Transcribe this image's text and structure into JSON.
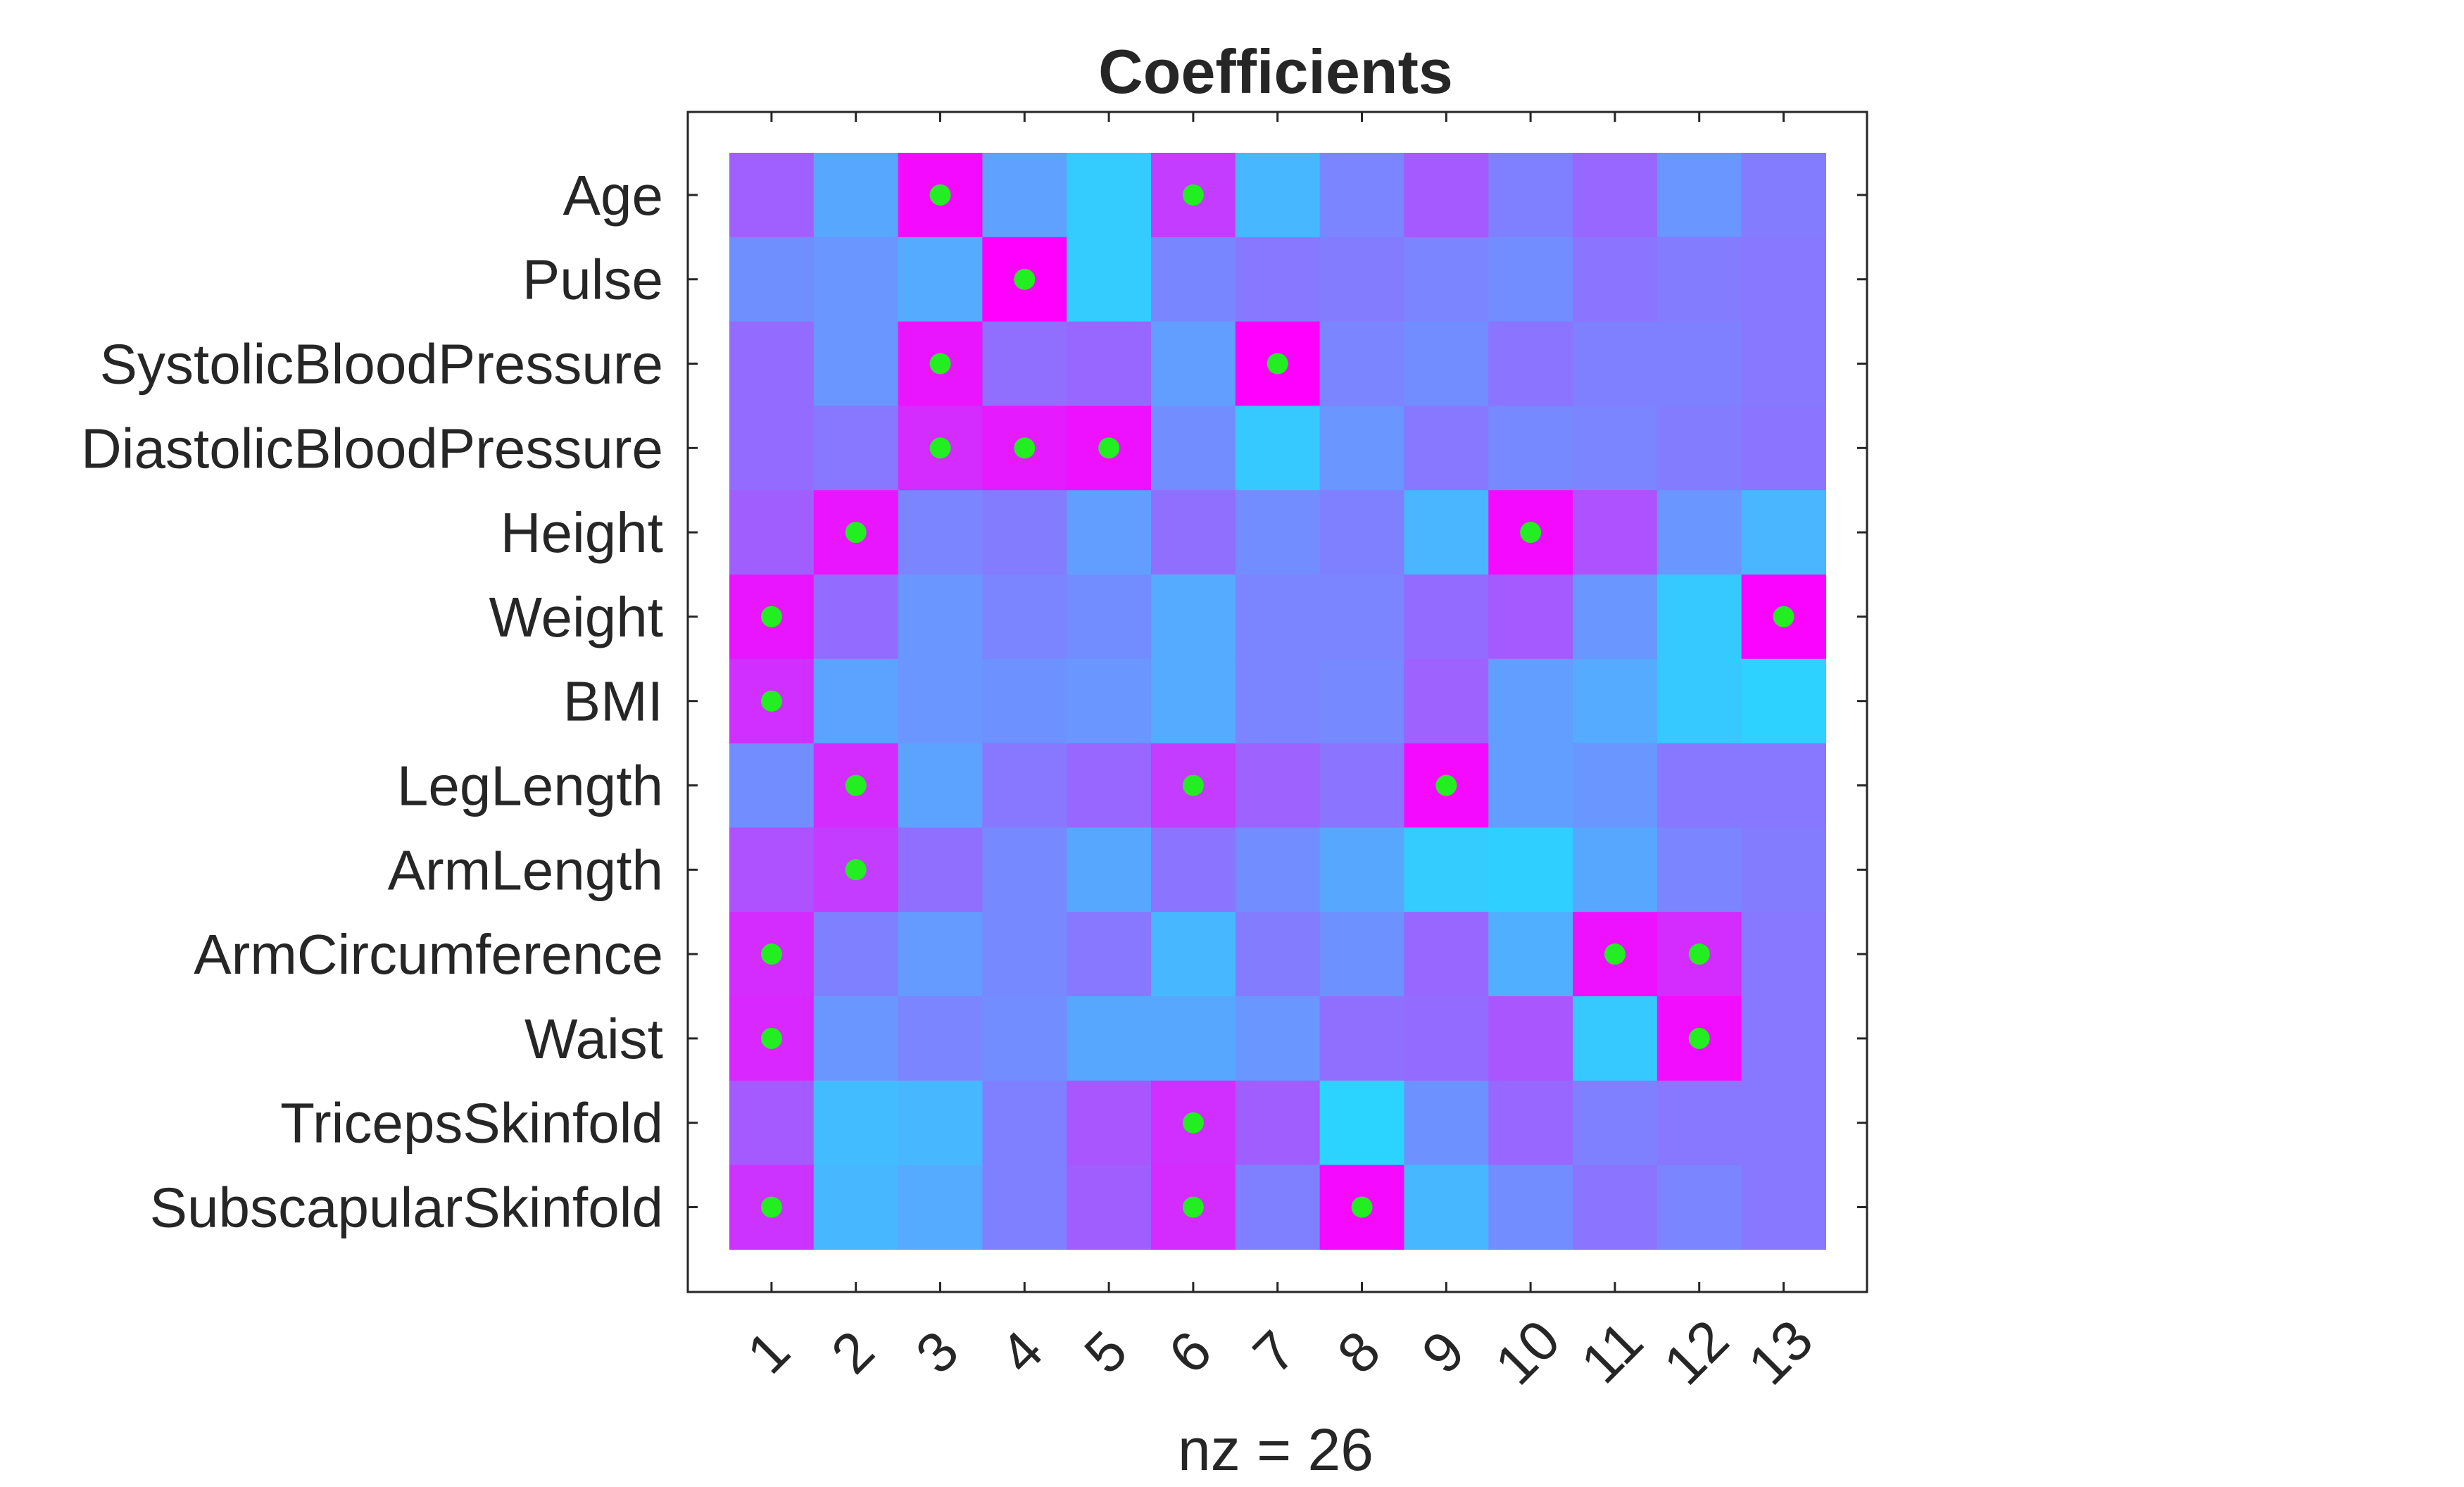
{
  "chart_data": {
    "type": "heatmap",
    "title": "Coefficients",
    "xlabel": "nz = 26",
    "ylabel": "",
    "rows": [
      "Age",
      "Pulse",
      "SystolicBloodPressure",
      "DiastolicBloodPressure",
      "Height",
      "Weight",
      "BMI",
      "LegLength",
      "ArmLength",
      "ArmCircumference",
      "Waist",
      "TricepsSkinfold",
      "SubscapularSkinfold"
    ],
    "columns": [
      "1",
      "2",
      "3",
      "4",
      "5",
      "6",
      "7",
      "8",
      "9",
      "10",
      "11",
      "12",
      "13"
    ],
    "xlim": [
      0.5,
      13.5
    ],
    "ylim": [
      0.5,
      13.5
    ],
    "colormap": {
      "low": "#29d6ff",
      "high": "#ff00ff"
    },
    "marker_color": "#22ee22",
    "values": [
      [
        0.55,
        0.22,
        0.95,
        0.25,
        0.05,
        0.72,
        0.14,
        0.38,
        0.58,
        0.4,
        0.52,
        0.3,
        0.42
      ],
      [
        0.33,
        0.3,
        0.2,
        1.0,
        0.05,
        0.37,
        0.44,
        0.42,
        0.38,
        0.34,
        0.46,
        0.42,
        0.44
      ],
      [
        0.5,
        0.3,
        0.9,
        0.48,
        0.52,
        0.26,
        1.0,
        0.38,
        0.34,
        0.46,
        0.4,
        0.4,
        0.44
      ],
      [
        0.5,
        0.44,
        0.8,
        0.88,
        0.92,
        0.34,
        0.06,
        0.3,
        0.44,
        0.36,
        0.38,
        0.42,
        0.46
      ],
      [
        0.56,
        0.9,
        0.38,
        0.42,
        0.26,
        0.48,
        0.34,
        0.4,
        0.15,
        0.95,
        0.62,
        0.3,
        0.15
      ],
      [
        0.9,
        0.5,
        0.3,
        0.38,
        0.34,
        0.2,
        0.38,
        0.38,
        0.5,
        0.58,
        0.3,
        0.06,
        0.98
      ],
      [
        0.78,
        0.24,
        0.3,
        0.32,
        0.3,
        0.2,
        0.38,
        0.36,
        0.54,
        0.26,
        0.2,
        0.06,
        0.02
      ],
      [
        0.34,
        0.8,
        0.24,
        0.44,
        0.52,
        0.72,
        0.54,
        0.46,
        0.95,
        0.26,
        0.3,
        0.44,
        0.44
      ],
      [
        0.62,
        0.72,
        0.48,
        0.36,
        0.22,
        0.46,
        0.34,
        0.22,
        0.05,
        0.03,
        0.22,
        0.38,
        0.42
      ],
      [
        0.8,
        0.4,
        0.28,
        0.36,
        0.44,
        0.14,
        0.42,
        0.32,
        0.52,
        0.18,
        0.92,
        0.8,
        0.44
      ],
      [
        0.82,
        0.3,
        0.38,
        0.34,
        0.22,
        0.22,
        0.3,
        0.48,
        0.5,
        0.6,
        0.06,
        0.94,
        0.44
      ],
      [
        0.58,
        0.12,
        0.14,
        0.4,
        0.6,
        0.78,
        0.56,
        0.01,
        0.32,
        0.52,
        0.4,
        0.44,
        0.44
      ],
      [
        0.76,
        0.14,
        0.2,
        0.4,
        0.56,
        0.8,
        0.4,
        0.96,
        0.14,
        0.34,
        0.46,
        0.38,
        0.44
      ]
    ],
    "markers": [
      [
        1,
        3
      ],
      [
        1,
        6
      ],
      [
        2,
        4
      ],
      [
        3,
        3
      ],
      [
        3,
        7
      ],
      [
        4,
        3
      ],
      [
        4,
        4
      ],
      [
        4,
        5
      ],
      [
        5,
        2
      ],
      [
        5,
        10
      ],
      [
        6,
        1
      ],
      [
        6,
        13
      ],
      [
        7,
        1
      ],
      [
        8,
        2
      ],
      [
        8,
        6
      ],
      [
        8,
        9
      ],
      [
        9,
        2
      ],
      [
        10,
        1
      ],
      [
        10,
        11
      ],
      [
        10,
        12
      ],
      [
        11,
        1
      ],
      [
        11,
        12
      ],
      [
        12,
        6
      ],
      [
        13,
        1
      ],
      [
        13,
        6
      ],
      [
        13,
        8
      ]
    ]
  }
}
